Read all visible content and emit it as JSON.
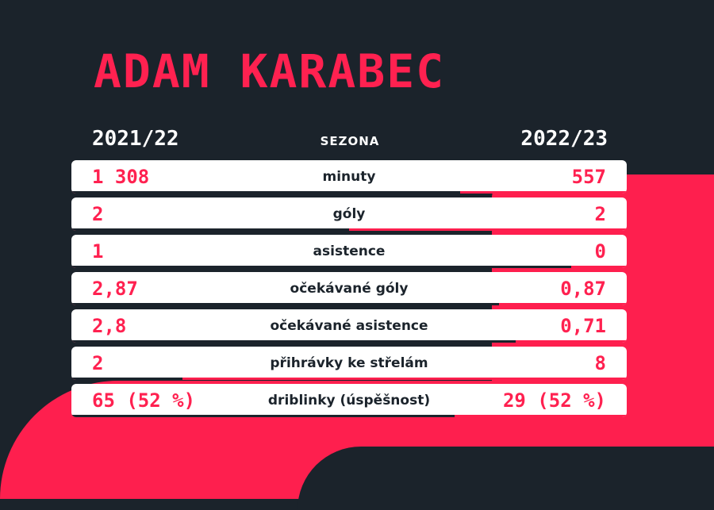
{
  "title": "ADAM KARABEC",
  "header": {
    "season_left": "2021/22",
    "season_label": "SEZONA",
    "season_right": "2022/23"
  },
  "colors": {
    "accent": "#fe1f4e",
    "background": "#1b232b",
    "row": "#ffffff"
  },
  "rows": [
    {
      "label": "minuty",
      "left": "1 308",
      "right": "557",
      "left_share": 0.7
    },
    {
      "label": "góly",
      "left": "2",
      "right": "2",
      "left_share": 0.5
    },
    {
      "label": "asistence",
      "left": "1",
      "right": "0",
      "left_share": 0.9
    },
    {
      "label": "očekávané góly",
      "left": "2,87",
      "right": "0,87",
      "left_share": 0.77
    },
    {
      "label": "očekávané asistence",
      "left": "2,8",
      "right": "0,71",
      "left_share": 0.8
    },
    {
      "label": "přihrávky ke střelám",
      "left": "2",
      "right": "8",
      "left_share": 0.2
    },
    {
      "label": "driblinky (úspěšnost)",
      "left": "65 (52 %)",
      "right": "29 (52 %)",
      "left_share": 0.69
    }
  ]
}
